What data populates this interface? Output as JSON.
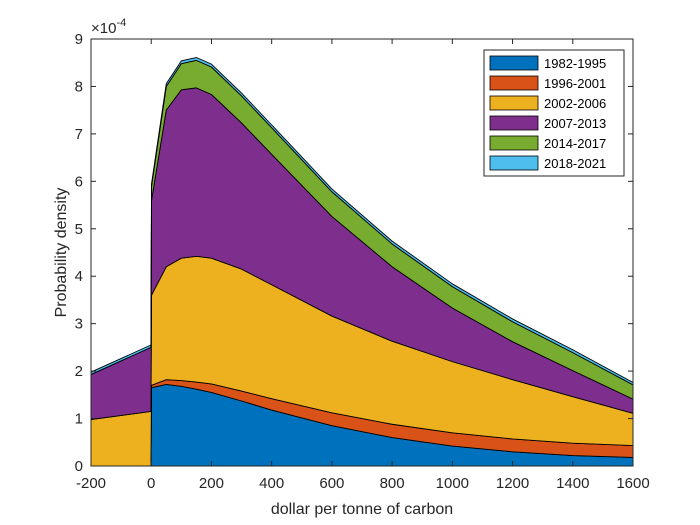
{
  "chart_data": {
    "type": "area",
    "stacked": true,
    "xlabel": "dollar per tonne of carbon",
    "ylabel": "Probability density",
    "y_multiplier_label": "×10",
    "y_multiplier_exponent": "-4",
    "xlim": [
      -200,
      1600
    ],
    "ylim": [
      0,
      9
    ],
    "xticks": [
      "-200",
      "0",
      "200",
      "400",
      "600",
      "800",
      "1000",
      "1200",
      "1400",
      "1600"
    ],
    "yticks": [
      "0",
      "1",
      "2",
      "3",
      "4",
      "5",
      "6",
      "7",
      "8",
      "9"
    ],
    "grid": false,
    "legend_position": "top-right",
    "y_unit_scale": 0.0001,
    "x": [
      -200,
      -1,
      1,
      50,
      100,
      150,
      200,
      300,
      400,
      600,
      800,
      1000,
      1200,
      1400,
      1600
    ],
    "series": [
      {
        "name": "1982-1995",
        "color": "#0072BD",
        "values": [
          0,
          0,
          1.65,
          1.72,
          1.68,
          1.62,
          1.55,
          1.37,
          1.18,
          0.85,
          0.6,
          0.42,
          0.3,
          0.22,
          0.18
        ]
      },
      {
        "name": "1996-2001",
        "color": "#D95319",
        "values": [
          0,
          0,
          0.05,
          0.1,
          0.12,
          0.15,
          0.18,
          0.21,
          0.24,
          0.27,
          0.28,
          0.28,
          0.27,
          0.26,
          0.25
        ]
      },
      {
        "name": "2002-2006",
        "color": "#EDB120",
        "values": [
          0.98,
          1.15,
          1.9,
          2.38,
          2.58,
          2.65,
          2.65,
          2.57,
          2.4,
          2.04,
          1.75,
          1.5,
          1.25,
          0.98,
          0.68
        ]
      },
      {
        "name": "2007-2013",
        "color": "#7E2F8E",
        "values": [
          0.95,
          1.35,
          2.0,
          3.3,
          3.55,
          3.55,
          3.45,
          3.08,
          2.75,
          2.1,
          1.57,
          1.13,
          0.8,
          0.55,
          0.3
        ]
      },
      {
        "name": "2014-2017",
        "color": "#77AC30",
        "values": [
          0,
          0,
          0.3,
          0.5,
          0.55,
          0.58,
          0.58,
          0.57,
          0.56,
          0.52,
          0.48,
          0.45,
          0.42,
          0.38,
          0.3
        ]
      },
      {
        "name": "2018-2021",
        "color": "#4DBEEE",
        "values": [
          0.05,
          0.05,
          0.05,
          0.06,
          0.06,
          0.06,
          0.06,
          0.06,
          0.06,
          0.06,
          0.06,
          0.06,
          0.06,
          0.06,
          0.05
        ]
      }
    ]
  }
}
